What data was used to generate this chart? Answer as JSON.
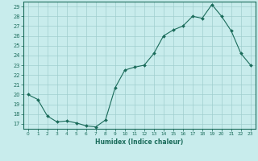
{
  "x": [
    0,
    1,
    2,
    3,
    4,
    5,
    6,
    7,
    8,
    9,
    10,
    11,
    12,
    13,
    14,
    15,
    16,
    17,
    18,
    19,
    20,
    21,
    22,
    23
  ],
  "y": [
    20.0,
    19.5,
    17.8,
    17.2,
    17.3,
    17.1,
    16.8,
    16.7,
    17.4,
    20.7,
    22.5,
    22.8,
    23.0,
    24.2,
    26.0,
    26.6,
    27.0,
    28.0,
    27.8,
    29.2,
    28.0,
    26.5,
    24.2,
    23.0
  ],
  "xlabel": "Humidex (Indice chaleur)",
  "ylabel": "",
  "xlim": [
    -0.5,
    23.5
  ],
  "ylim": [
    16.5,
    29.5
  ],
  "yticks": [
    17,
    18,
    19,
    20,
    21,
    22,
    23,
    24,
    25,
    26,
    27,
    28,
    29
  ],
  "xticks": [
    0,
    1,
    2,
    3,
    4,
    5,
    6,
    7,
    8,
    9,
    10,
    11,
    12,
    13,
    14,
    15,
    16,
    17,
    18,
    19,
    20,
    21,
    22,
    23
  ],
  "line_color": "#1a6b5a",
  "marker_color": "#1a6b5a",
  "bg_color": "#c8ecec",
  "grid_color": "#a0cece",
  "spine_color": "#1a6b5a",
  "tick_color": "#1a6b5a",
  "label_color": "#1a6b5a"
}
